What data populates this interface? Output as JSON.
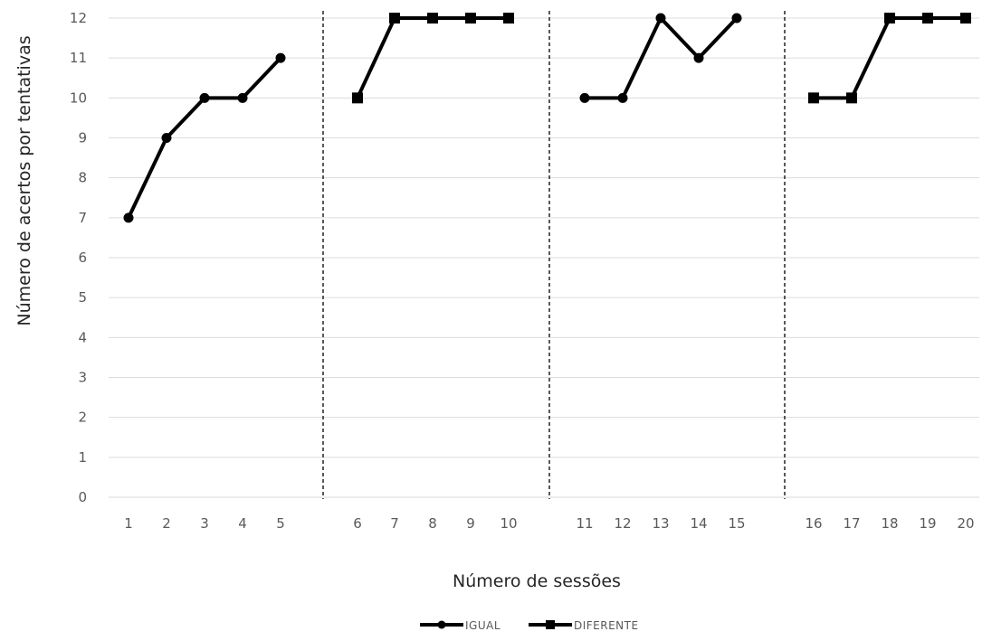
{
  "chart_data": {
    "type": "line",
    "xlabel": "Número de sessões",
    "ylabel": "Número de acertos por tentativas",
    "ylim": [
      0,
      12
    ],
    "yticks": [
      0,
      1,
      2,
      3,
      4,
      5,
      6,
      7,
      8,
      9,
      10,
      11,
      12
    ],
    "categories": [
      "1",
      "2",
      "3",
      "4",
      "5",
      "6",
      "7",
      "8",
      "9",
      "10",
      "11",
      "12",
      "13",
      "14",
      "15",
      "16",
      "17",
      "18",
      "19",
      "20"
    ],
    "phase_breaks_after": [
      "5",
      "10",
      "15"
    ],
    "grid": "horizontal",
    "legend_position": "bottom",
    "series": [
      {
        "name": "IGUAL",
        "marker": "circle",
        "color": "#000000",
        "segments": [
          {
            "x": [
              "1",
              "2",
              "3",
              "4",
              "5"
            ],
            "y": [
              7,
              9,
              10,
              10,
              11
            ]
          },
          {
            "x": [
              "11",
              "12",
              "13",
              "14",
              "15"
            ],
            "y": [
              10,
              10,
              12,
              11,
              12
            ]
          }
        ]
      },
      {
        "name": "DIFERENTE",
        "marker": "square",
        "color": "#000000",
        "segments": [
          {
            "x": [
              "6",
              "7",
              "8",
              "9",
              "10"
            ],
            "y": [
              10,
              12,
              12,
              12,
              12
            ]
          },
          {
            "x": [
              "16",
              "17",
              "18",
              "19",
              "20"
            ],
            "y": [
              10,
              10,
              12,
              12,
              12
            ]
          }
        ]
      }
    ]
  }
}
